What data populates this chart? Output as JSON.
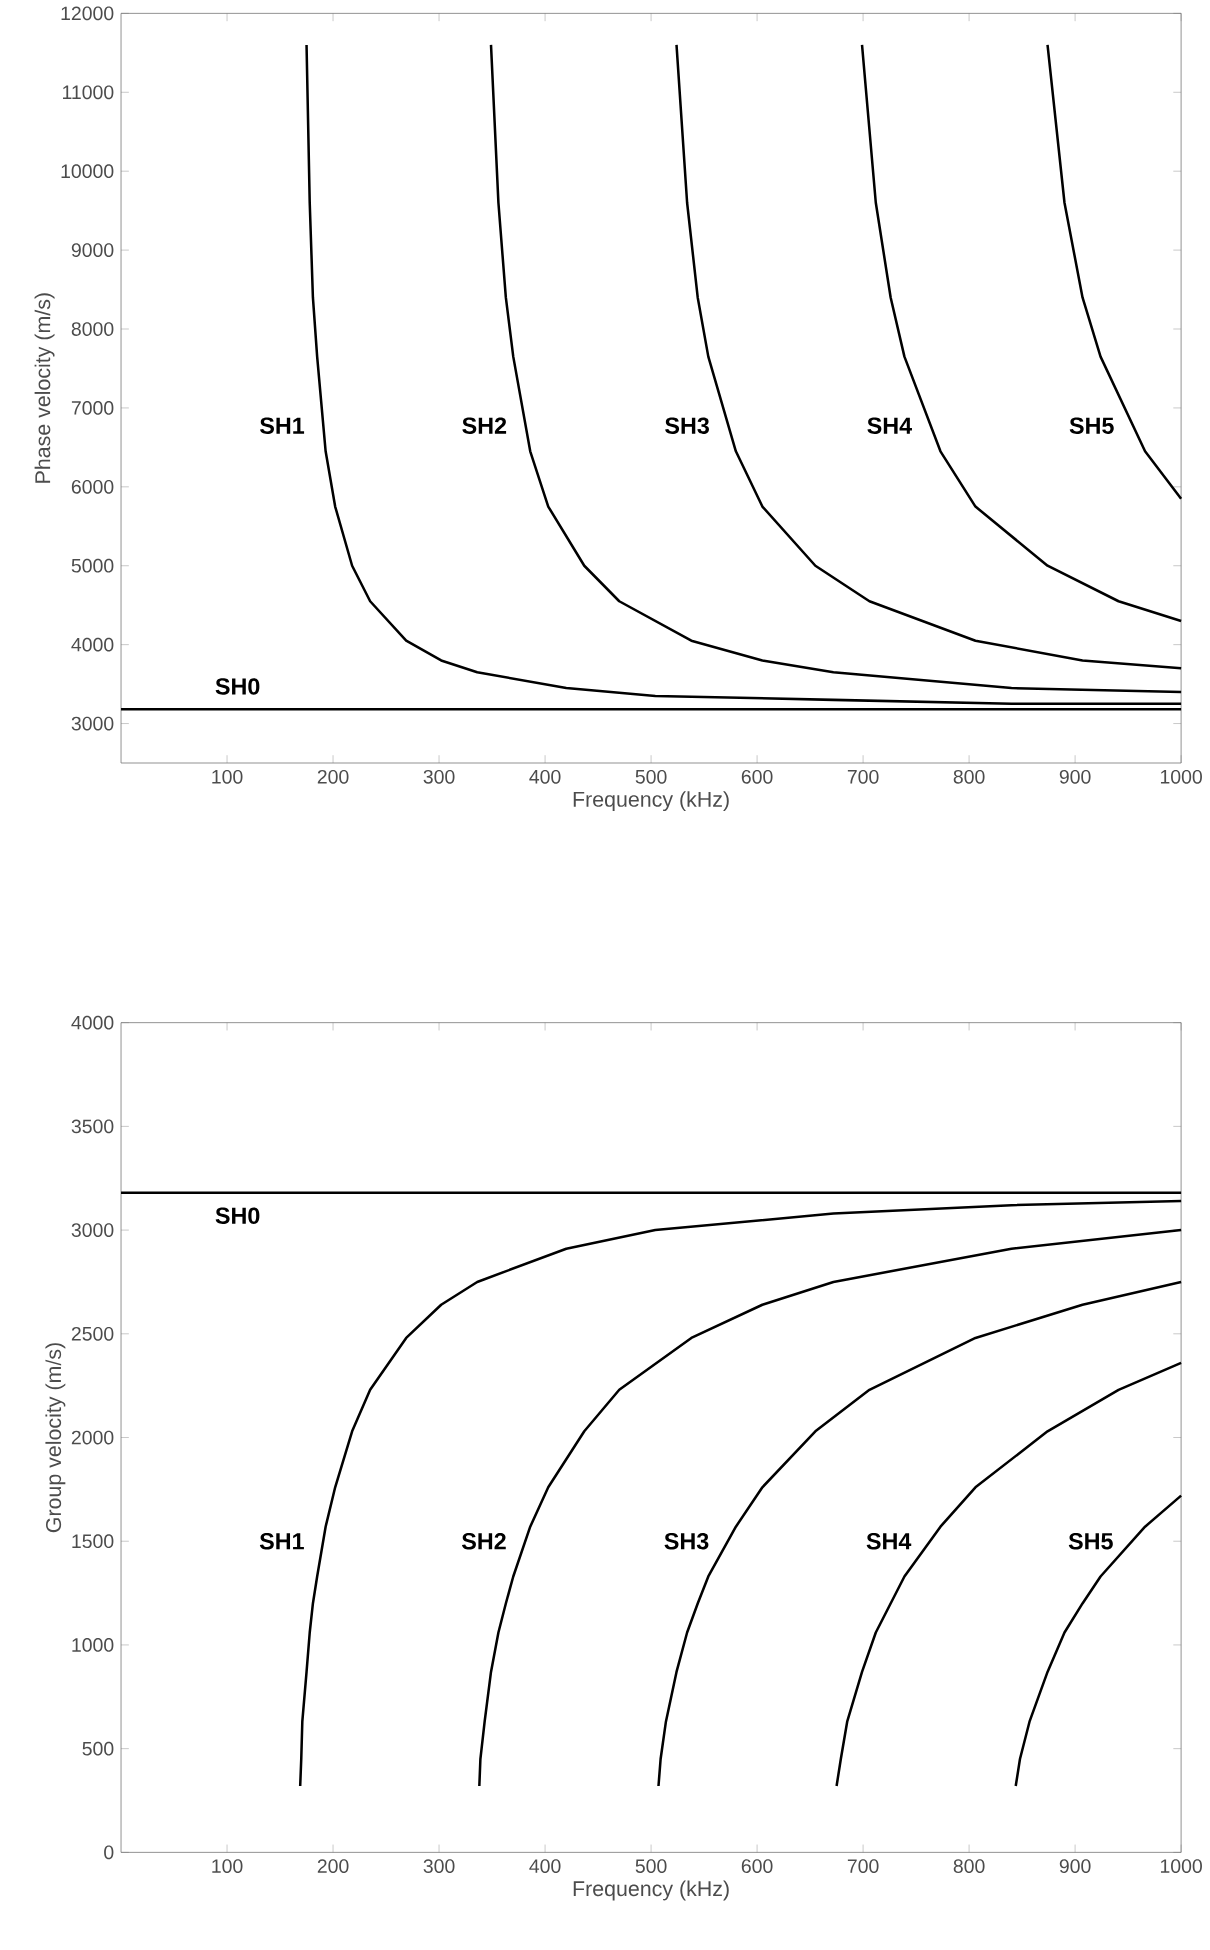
{
  "chart_data": [
    {
      "type": "line",
      "xlabel": "Frequency (kHz)",
      "ylabel": "Phase velocity (m/s)",
      "xlim": [
        0,
        1000
      ],
      "ylim": [
        2500,
        12000
      ],
      "xticks": [
        100,
        200,
        300,
        400,
        500,
        600,
        700,
        800,
        900,
        1000
      ],
      "yticks": [
        3000,
        4000,
        5000,
        6000,
        7000,
        8000,
        9000,
        10000,
        11000,
        12000
      ],
      "series": [
        {
          "name": "SH0",
          "color": "#000000",
          "x": [
            0,
            1000
          ],
          "values": [
            3180,
            3180
          ]
        },
        {
          "name": "SH1",
          "color": "#000000",
          "x": [
            175,
            178,
            181,
            185,
            193,
            202,
            218,
            235,
            269,
            302,
            336,
            420,
            504,
            672,
            840,
            1000
          ],
          "values": [
            11600,
            9600,
            8400,
            7650,
            6450,
            5750,
            5000,
            4550,
            4050,
            3800,
            3650,
            3450,
            3350,
            3300,
            3250,
            3250
          ]
        },
        {
          "name": "SH2",
          "color": "#000000",
          "x": [
            349,
            356,
            363,
            370,
            386,
            403,
            437,
            470,
            538,
            605,
            672,
            840,
            1000
          ],
          "values": [
            11600,
            9600,
            8400,
            7650,
            6450,
            5750,
            5000,
            4550,
            4050,
            3800,
            3650,
            3450,
            3400
          ]
        },
        {
          "name": "SH3",
          "color": "#000000",
          "x": [
            524,
            534,
            544,
            554,
            580,
            605,
            655,
            706,
            806,
            907,
            1000
          ],
          "values": [
            11600,
            9600,
            8400,
            7650,
            6450,
            5750,
            5000,
            4550,
            4050,
            3800,
            3700
          ]
        },
        {
          "name": "SH4",
          "color": "#000000",
          "x": [
            699,
            712,
            726,
            739,
            773,
            806,
            874,
            941,
            1000
          ],
          "values": [
            11600,
            9600,
            8400,
            7650,
            6450,
            5750,
            5000,
            4550,
            4300
          ]
        },
        {
          "name": "SH5",
          "color": "#000000",
          "x": [
            874,
            890,
            907,
            924,
            966,
            1000
          ],
          "values": [
            11600,
            9600,
            8400,
            7650,
            6450,
            5850
          ]
        }
      ]
    },
    {
      "type": "line",
      "xlabel": "Frequency (kHz)",
      "ylabel": "Group velocity (m/s)",
      "xlim": [
        0,
        1000
      ],
      "ylim": [
        0,
        4000
      ],
      "xticks": [
        100,
        200,
        300,
        400,
        500,
        600,
        700,
        800,
        900,
        1000
      ],
      "yticks": [
        0,
        500,
        1000,
        1500,
        2000,
        2500,
        3000,
        3500,
        4000
      ],
      "series": [
        {
          "name": "SH0",
          "color": "#000000",
          "x": [
            0,
            1000
          ],
          "values": [
            3180,
            3180
          ]
        },
        {
          "name": "SH1",
          "color": "#000000",
          "x": [
            169,
            170,
            171,
            175,
            178,
            181,
            185,
            193,
            202,
            218,
            235,
            269,
            302,
            336,
            420,
            504,
            672,
            840,
            1000
          ],
          "values": [
            320,
            450,
            630,
            870,
            1060,
            1200,
            1330,
            1570,
            1760,
            2030,
            2230,
            2480,
            2640,
            2750,
            2910,
            3000,
            3080,
            3120,
            3140
          ]
        },
        {
          "name": "SH2",
          "color": "#000000",
          "x": [
            338,
            339,
            343,
            349,
            356,
            363,
            370,
            386,
            403,
            437,
            470,
            538,
            605,
            672,
            840,
            1000
          ],
          "values": [
            320,
            450,
            630,
            870,
            1060,
            1200,
            1330,
            1570,
            1760,
            2030,
            2230,
            2480,
            2640,
            2750,
            2910,
            3000
          ]
        },
        {
          "name": "SH3",
          "color": "#000000",
          "x": [
            507,
            509,
            514,
            524,
            534,
            544,
            554,
            580,
            605,
            655,
            706,
            806,
            907,
            1000
          ],
          "values": [
            320,
            450,
            630,
            870,
            1060,
            1200,
            1330,
            1570,
            1760,
            2030,
            2230,
            2480,
            2640,
            2750
          ]
        },
        {
          "name": "SH4",
          "color": "#000000",
          "x": [
            675,
            679,
            685,
            699,
            712,
            726,
            739,
            773,
            806,
            874,
            941,
            1000
          ],
          "values": [
            320,
            450,
            630,
            870,
            1060,
            1200,
            1330,
            1570,
            1760,
            2030,
            2230,
            2360
          ]
        },
        {
          "name": "SH5",
          "color": "#000000",
          "x": [
            844,
            848,
            857,
            874,
            890,
            907,
            924,
            966,
            1000
          ],
          "values": [
            320,
            450,
            630,
            870,
            1060,
            1200,
            1330,
            1570,
            1720
          ]
        }
      ]
    }
  ]
}
